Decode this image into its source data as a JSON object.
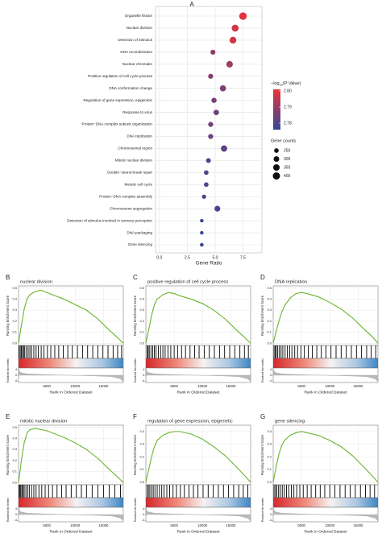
{
  "chart_data": [
    {
      "type": "scatter",
      "panel_label": "A",
      "xlabel": "Gene Ratio",
      "categories": [
        "Organelle fission",
        "Nuclear division",
        "Detection of stimulus",
        "DNA recombination",
        "Nuclear chromatin",
        "Positive regulation of cell cycle process",
        "DNA conformation change",
        "Regulation of gene expression, epigenetic",
        "Response to virus",
        "Protein−DNA complex subunit organization",
        "DNA replication",
        "Chromosomal region",
        "Mitotic nuclear division",
        "Double−strand break repair",
        "Meiotic cell cycle",
        "Protein−DNA complex assembly",
        "Chromosome segregation",
        "Detection of stimulus involved in sensory perception",
        "DNA packaging",
        "Gene silencing"
      ],
      "values": [
        7.5,
        6.8,
        6.6,
        4.8,
        6.3,
        4.6,
        5.7,
        4.9,
        5.1,
        4.6,
        4.6,
        5.8,
        4.4,
        4.2,
        4.2,
        4.0,
        5.2,
        3.8,
        3.8,
        3.8
      ],
      "sizes": [
        420,
        380,
        370,
        270,
        350,
        270,
        330,
        280,
        290,
        270,
        270,
        340,
        260,
        250,
        250,
        235,
        310,
        210,
        210,
        215
      ],
      "color_values": [
        2.8,
        2.798,
        2.798,
        2.789,
        2.79,
        2.787,
        2.786,
        2.785,
        2.784,
        2.784,
        2.783,
        2.782,
        2.781,
        2.78,
        2.78,
        2.779,
        2.779,
        2.777,
        2.777,
        2.777
      ],
      "xlim": [
        -0.35,
        9.2
      ],
      "xticks": [
        {
          "value": 0,
          "label": "0.0"
        },
        2.5,
        {
          "value": 5,
          "label": "5.0"
        },
        7.5
      ],
      "grid": true,
      "color_low": "#34489a",
      "color_high": "#e8333a",
      "colorbar_title": [
        "−log",
        "10",
        "(P Value)"
      ],
      "colorbar_lim": [
        2.776,
        2.801
      ],
      "colorbar_ticks": [
        {
          "value": 2.8,
          "label": "2.80"
        },
        2.79,
        2.78
      ],
      "size_title": "Gene counts",
      "size_breaks": [
        250,
        300,
        350,
        400
      ],
      "legend": "right"
    },
    {
      "type": "line",
      "panel_label": "B",
      "title": "nuclear division",
      "ylabel": "Running Enrichment Score",
      "ylabel2": "Ranked list metric",
      "xlabel": "Rank in Ordered Dataset",
      "color": "#6ab42d",
      "x": [
        0,
        500,
        1000,
        1500,
        2000,
        3000,
        4000,
        5000,
        6000,
        8000,
        10000,
        12000,
        14000,
        16000,
        17500,
        18500
      ],
      "values": [
        0,
        0.16,
        0.31,
        0.4,
        0.44,
        0.47,
        0.48,
        0.46,
        0.44,
        0.4,
        0.35,
        0.3,
        0.22,
        0.12,
        0.05,
        0
      ],
      "hits": [
        100,
        300,
        500,
        700,
        900,
        1100,
        1400,
        1700,
        2000,
        2300,
        2700,
        3100,
        3500,
        4000,
        4500,
        5100,
        5700,
        6400,
        7100,
        7900,
        8700,
        9500,
        10400,
        11300,
        12200,
        13100,
        14000,
        14900,
        15800,
        16700,
        17500,
        18200
      ],
      "metric_x": [
        0,
        300,
        1500,
        5000,
        9000,
        13000,
        16500,
        18000,
        18500
      ],
      "metric_values": [
        4.5,
        2,
        1,
        0.4,
        0,
        -0.4,
        -1,
        -2.5,
        -4.5
      ],
      "xlim": [
        0,
        18500
      ],
      "xticks": [
        5000,
        10000,
        15000
      ],
      "ylim": [
        -0.02,
        0.52
      ],
      "yticks": [
        {
          "value": 0,
          "label": "0.0"
        },
        0.1,
        0.2,
        0.3,
        0.4,
        0.5
      ],
      "y2lim": [
        -5,
        5
      ],
      "y2ticks": [
        -4,
        0,
        4
      ],
      "grid": true
    },
    {
      "type": "line",
      "panel_label": "C",
      "title": "positive regulation of cell cycle process",
      "ylabel": "Running Enrichment Score",
      "ylabel2": "Ranked list metric",
      "xlabel": "Rank in Ordered Dataset",
      "color": "#6ab42d",
      "x": [
        0,
        500,
        1000,
        1500,
        2000,
        3000,
        4000,
        5000,
        6000,
        8000,
        10000,
        12000,
        14000,
        16000,
        17500,
        18500
      ],
      "values": [
        0,
        0.12,
        0.25,
        0.35,
        0.4,
        0.44,
        0.46,
        0.45,
        0.43,
        0.4,
        0.36,
        0.3,
        0.22,
        0.12,
        0.05,
        0
      ],
      "hits": [
        200,
        400,
        600,
        900,
        1200,
        1500,
        1800,
        2200,
        2600,
        3000,
        3400,
        3900,
        4400,
        5000,
        5600,
        6300,
        7000,
        7800,
        8600,
        9400,
        10300,
        11200,
        12100,
        13000,
        13900,
        14800,
        15700,
        16600,
        17400,
        18100
      ],
      "metric_x": [
        0,
        300,
        1500,
        5000,
        9000,
        13000,
        16500,
        18000,
        18500
      ],
      "metric_values": [
        4.5,
        2,
        1,
        0.4,
        0,
        -0.4,
        -1,
        -2.5,
        -4.5
      ],
      "xlim": [
        0,
        18500
      ],
      "xticks": [
        5000,
        10000,
        15000
      ],
      "ylim": [
        -0.02,
        0.52
      ],
      "yticks": [
        {
          "value": 0,
          "label": "0.0"
        },
        0.1,
        0.2,
        0.3,
        0.4,
        0.5
      ],
      "y2lim": [
        -5,
        5
      ],
      "y2ticks": [
        -4,
        0,
        4
      ],
      "grid": true
    },
    {
      "type": "line",
      "panel_label": "D",
      "title": "DNA replication",
      "ylabel": "Running Enrichment Score",
      "ylabel2": "Ranked list metric",
      "xlabel": "Rank in Ordered Dataset",
      "color": "#6ab42d",
      "x": [
        0,
        500,
        1000,
        1500,
        2000,
        3000,
        4000,
        5000,
        6000,
        8000,
        10000,
        12000,
        14000,
        16000,
        17500,
        18500
      ],
      "values": [
        0,
        0.1,
        0.2,
        0.28,
        0.34,
        0.41,
        0.45,
        0.46,
        0.45,
        0.42,
        0.37,
        0.31,
        0.23,
        0.13,
        0.06,
        0
      ],
      "hits": [
        150,
        350,
        550,
        800,
        1100,
        1400,
        1700,
        2100,
        2500,
        2900,
        3300,
        3800,
        4300,
        4900,
        5500,
        6200,
        6900,
        7700,
        8500,
        9300,
        10200,
        11100,
        12000,
        12900,
        13800,
        14700,
        15600,
        16500,
        17300,
        18100
      ],
      "metric_x": [
        0,
        300,
        1500,
        5000,
        9000,
        13000,
        16500,
        18000,
        18500
      ],
      "metric_values": [
        4.5,
        2,
        1,
        0.4,
        0,
        -0.4,
        -1,
        -2.5,
        -4.5
      ],
      "xlim": [
        0,
        18500
      ],
      "xticks": [
        5000,
        10000,
        15000
      ],
      "ylim": [
        -0.02,
        0.52
      ],
      "yticks": [
        {
          "value": 0,
          "label": "0.0"
        },
        0.1,
        0.2,
        0.3,
        0.4,
        0.5
      ],
      "y2lim": [
        -5,
        5
      ],
      "y2ticks": [
        -4,
        0,
        4
      ],
      "grid": true
    },
    {
      "type": "line",
      "panel_label": "E",
      "title": "mitotic nuclear division",
      "ylabel": "Running Enrichment Score",
      "ylabel2": "Ranked list metric",
      "xlabel": "Rank in Ordered Dataset",
      "color": "#6ab42d",
      "x": [
        0,
        500,
        1000,
        1500,
        2000,
        3000,
        4000,
        5000,
        6000,
        8000,
        10000,
        12000,
        14000,
        16000,
        17500,
        18500
      ],
      "values": [
        0,
        0.2,
        0.36,
        0.45,
        0.48,
        0.49,
        0.48,
        0.47,
        0.45,
        0.41,
        0.36,
        0.3,
        0.22,
        0.12,
        0.05,
        0
      ],
      "hits": [
        100,
        250,
        400,
        600,
        800,
        1000,
        1300,
        1600,
        1900,
        2300,
        2700,
        3100,
        3600,
        4100,
        4700,
        5300,
        6000,
        6800,
        7600,
        8400,
        9300,
        10200,
        11100,
        12000,
        13000,
        14000,
        15000,
        16000,
        17000,
        18000
      ],
      "metric_x": [
        0,
        300,
        1500,
        5000,
        9000,
        13000,
        16500,
        18000,
        18500
      ],
      "metric_values": [
        4.5,
        2,
        1,
        0.4,
        0,
        -0.4,
        -1,
        -2.5,
        -4.5
      ],
      "xlim": [
        0,
        18500
      ],
      "xticks": [
        5000,
        10000,
        15000
      ],
      "ylim": [
        -0.02,
        0.52
      ],
      "yticks": [
        {
          "value": 0,
          "label": "0.0"
        },
        0.1,
        0.2,
        0.3,
        0.4,
        0.5
      ],
      "y2lim": [
        -5,
        5
      ],
      "y2ticks": [
        -4,
        0,
        4
      ],
      "grid": true
    },
    {
      "type": "line",
      "panel_label": "F",
      "title": "regulation of gene expression, epigenetic",
      "ylabel": "Running Enrichment Score",
      "ylabel2": "Ranked list metric",
      "xlabel": "Rank in Ordered Dataset",
      "color": "#6ab42d",
      "x": [
        0,
        500,
        1000,
        1500,
        2000,
        3000,
        4000,
        5000,
        6000,
        8000,
        10000,
        12000,
        14000,
        16000,
        17500,
        18500
      ],
      "values": [
        0,
        0.1,
        0.2,
        0.28,
        0.33,
        0.37,
        0.39,
        0.4,
        0.4,
        0.38,
        0.34,
        0.28,
        0.21,
        0.12,
        0.05,
        0
      ],
      "hits": [
        200,
        450,
        700,
        1000,
        1300,
        1600,
        2000,
        2400,
        2800,
        3200,
        3700,
        4200,
        4800,
        5400,
        6100,
        6800,
        7600,
        8400,
        9200,
        10100,
        11000,
        11900,
        12800,
        13700,
        14600,
        15500,
        16400,
        17200,
        18000
      ],
      "metric_x": [
        0,
        300,
        1500,
        5000,
        9000,
        13000,
        16500,
        18000,
        18500
      ],
      "metric_values": [
        4.5,
        2,
        1,
        0.4,
        0,
        -0.4,
        -1,
        -2.5,
        -4.5
      ],
      "xlim": [
        0,
        18500
      ],
      "xticks": [
        5000,
        10000,
        15000
      ],
      "ylim": [
        -0.02,
        0.45
      ],
      "yticks": [
        {
          "value": 0,
          "label": "0.0"
        },
        0.1,
        0.2,
        0.3,
        0.4
      ],
      "y2lim": [
        -5,
        5
      ],
      "y2ticks": [
        -4,
        0,
        4
      ],
      "grid": true
    },
    {
      "type": "line",
      "panel_label": "G",
      "title": "gene silencing",
      "ylabel": "Running Enrichment Score",
      "ylabel2": "Ranked list metric",
      "xlabel": "Rank in Ordered Dataset",
      "color": "#6ab42d",
      "x": [
        0,
        500,
        1000,
        1500,
        2000,
        3000,
        4000,
        5000,
        6000,
        8000,
        10000,
        12000,
        14000,
        16000,
        17500,
        18500
      ],
      "values": [
        0,
        0.12,
        0.22,
        0.29,
        0.33,
        0.37,
        0.39,
        0.4,
        0.39,
        0.37,
        0.33,
        0.28,
        0.21,
        0.12,
        0.05,
        0
      ],
      "hits": [
        150,
        400,
        650,
        950,
        1250,
        1600,
        1950,
        2350,
        2750,
        3200,
        3650,
        4150,
        4700,
        5300,
        6000,
        6700,
        7500,
        8300,
        9100,
        10000,
        10900,
        11800,
        12700,
        13600,
        14500,
        15400,
        16300,
        17100,
        17900
      ],
      "metric_x": [
        0,
        300,
        1500,
        5000,
        9000,
        13000,
        16500,
        18000,
        18500
      ],
      "metric_values": [
        4.5,
        2,
        1,
        0.4,
        0,
        -0.4,
        -1,
        -2.5,
        -4.5
      ],
      "xlim": [
        0,
        18500
      ],
      "xticks": [
        5000,
        10000,
        15000
      ],
      "ylim": [
        -0.02,
        0.45
      ],
      "yticks": [
        {
          "value": 0,
          "label": "0.0"
        },
        0.1,
        0.2,
        0.3,
        0.4
      ],
      "y2lim": [
        -5,
        5
      ],
      "y2ticks": [
        -4,
        0,
        4
      ],
      "grid": true
    }
  ]
}
